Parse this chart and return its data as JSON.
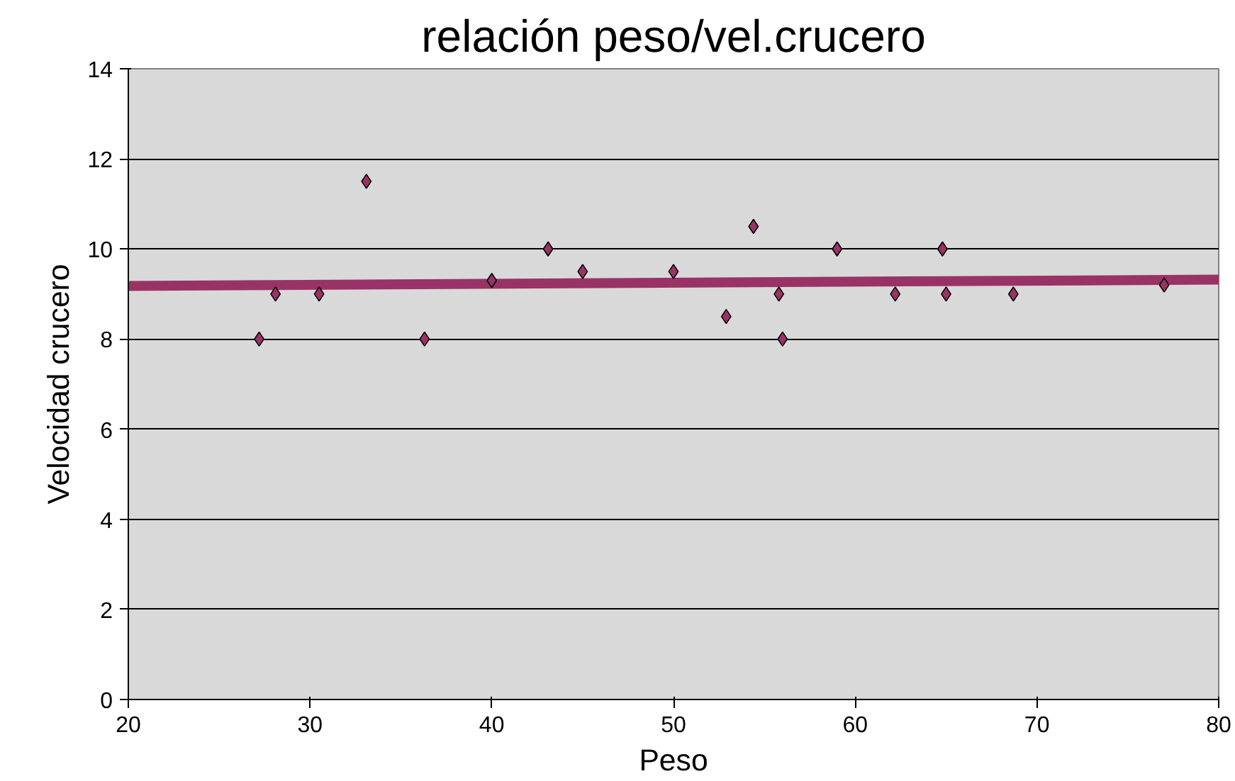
{
  "chart_data": {
    "type": "scatter",
    "title": "relación peso/vel.crucero",
    "xlabel": "Peso",
    "ylabel": "Velocidad crucero",
    "xlim": [
      20,
      80
    ],
    "xticks": [
      20,
      30,
      40,
      50,
      60,
      70,
      80
    ],
    "ylim": [
      0,
      14
    ],
    "yticks": [
      0,
      2,
      4,
      6,
      8,
      10,
      12,
      14
    ],
    "grid": "y",
    "series": [
      {
        "color": "#993366",
        "marker": "diamond",
        "x": [
          27.2,
          28.1,
          30.5,
          33.1,
          36.3,
          40.0,
          43.1,
          45.0,
          50.0,
          52.9,
          54.4,
          55.8,
          56.0,
          59.0,
          62.2,
          64.8,
          65.0,
          68.7,
          77.0
        ],
        "values": [
          8,
          9,
          9,
          11.5,
          8,
          9.3,
          10,
          9.5,
          9.5,
          8.5,
          10.5,
          9,
          8,
          10,
          9,
          10,
          9,
          9,
          9.2
        ]
      },
      {
        "type": "line",
        "color": "#993366",
        "marker": "none",
        "x": [
          20,
          80
        ],
        "values": [
          9.18,
          9.32
        ]
      }
    ]
  }
}
